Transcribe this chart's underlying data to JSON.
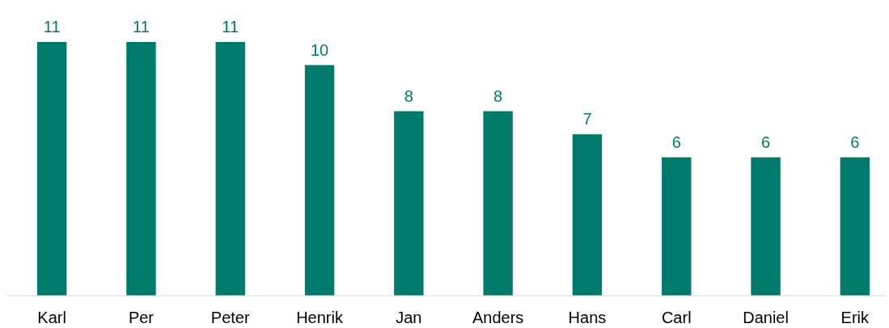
{
  "chart_data": {
    "type": "bar",
    "categories": [
      "Karl",
      "Per",
      "Peter",
      "Henrik",
      "Jan",
      "Anders",
      "Hans",
      "Carl",
      "Daniel",
      "Erik"
    ],
    "values": [
      11,
      11,
      11,
      10,
      8,
      8,
      7,
      6,
      6,
      6
    ],
    "color": "#007b6b",
    "data_labels": true
  }
}
